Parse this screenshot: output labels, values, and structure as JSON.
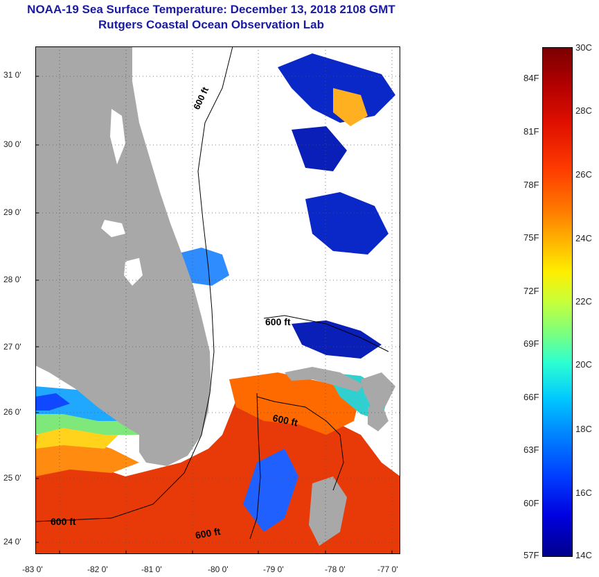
{
  "title": "NOAA-19 Sea Surface Temperature:  December 13, 2018 2108 GMT",
  "subtitle": "Rutgers Coastal Ocean Observation Lab",
  "lat_ticks": [
    "31 0'",
    "30 0'",
    "29 0'",
    "28 0'",
    "27 0'",
    "26 0'",
    "25 0'",
    "24 0'"
  ],
  "lon_ticks": [
    "-83 0'",
    "-82 0'",
    "-81 0'",
    "-80 0'",
    "-79 0'",
    "-78 0'",
    "-77 0'"
  ],
  "contour_labels": [
    "600 ft",
    "600 ft",
    "600 ft",
    "600 ft",
    "600 ft"
  ],
  "colorbar": {
    "fahrenheit": [
      "84F",
      "81F",
      "78F",
      "75F",
      "72F",
      "69F",
      "66F",
      "63F",
      "60F",
      "57F"
    ],
    "celsius": [
      "30C",
      "28C",
      "26C",
      "24C",
      "22C",
      "20C",
      "18C",
      "16C",
      "14C"
    ]
  },
  "colors": {
    "land": "#a8a8a8",
    "cloud": "#ffffff",
    "title": "#1a1aa0",
    "sst_warm": "#e83000",
    "sst_mid": "#ffd000",
    "sst_cool": "#1050ff",
    "sst_cold": "#00008c"
  }
}
